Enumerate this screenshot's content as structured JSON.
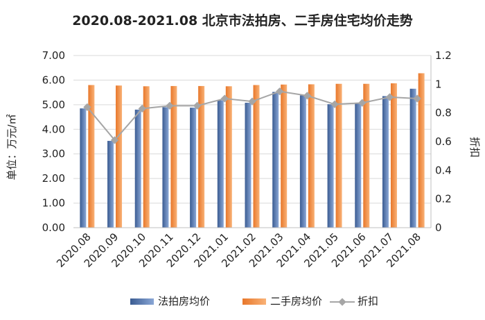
{
  "chart_data": {
    "type": "bar",
    "title": "2020.08-2021.08 北京市法拍房、二手房住宅均价走势",
    "categories": [
      "2020.08",
      "2020.09",
      "2020.10",
      "2020.11",
      "2020.12",
      "2021.01",
      "2021.02",
      "2021.03",
      "2021.04",
      "2021.05",
      "2021.06",
      "2021.07",
      "2021.08"
    ],
    "ylabel": "单位：万元/㎡",
    "y2label": "折扣",
    "ylim": [
      0,
      7
    ],
    "y2lim": [
      0,
      1.2
    ],
    "yticks": [
      "0.00",
      "1.00",
      "2.00",
      "3.00",
      "4.00",
      "5.00",
      "6.00",
      "7.00"
    ],
    "y2ticks": [
      "0",
      "0.2",
      "0.4",
      "0.6",
      "0.8",
      "1",
      "1.2"
    ],
    "series": [
      {
        "name": "法拍房均价",
        "type": "bar",
        "axis": "left",
        "color": "#4a6ea9",
        "values": [
          4.85,
          3.53,
          4.8,
          4.9,
          4.88,
          5.18,
          5.08,
          5.52,
          5.38,
          5.02,
          5.05,
          5.35,
          5.65
        ]
      },
      {
        "name": "二手房均价",
        "type": "bar",
        "axis": "left",
        "color": "#f08a3c",
        "values": [
          5.8,
          5.78,
          5.75,
          5.76,
          5.76,
          5.75,
          5.8,
          5.82,
          5.83,
          5.85,
          5.85,
          5.87,
          6.28
        ]
      },
      {
        "name": "折扣",
        "type": "line",
        "axis": "right",
        "color": "#a6a6a6",
        "values": [
          0.84,
          0.61,
          0.83,
          0.85,
          0.85,
          0.9,
          0.88,
          0.95,
          0.92,
          0.86,
          0.87,
          0.91,
          0.9
        ]
      }
    ],
    "legend_position": "bottom",
    "grid": true
  }
}
